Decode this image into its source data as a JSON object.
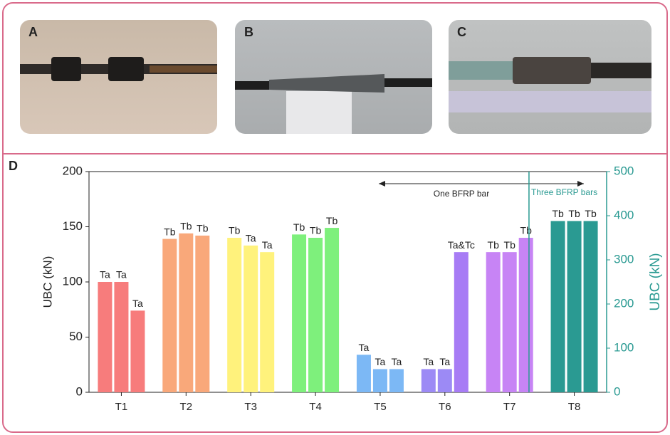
{
  "panels": [
    "A",
    "B",
    "C",
    "D"
  ],
  "chart_data": {
    "type": "bar",
    "ylabel": "UBC (kN)",
    "y2label": "UBC (kN)",
    "ylim": [
      0,
      200
    ],
    "yticks": [
      0,
      50,
      100,
      150,
      200
    ],
    "y2lim": [
      0,
      500
    ],
    "y2ticks": [
      0,
      100,
      200,
      300,
      400,
      500
    ],
    "categories": [
      "T1",
      "T2",
      "T3",
      "T4",
      "T5",
      "T6",
      "T7",
      "T8"
    ],
    "groups": [
      {
        "values": [
          100,
          100,
          74
        ],
        "labels": [
          "Ta",
          "Ta",
          "Ta"
        ],
        "colors": [
          "#f77c7c",
          "#f77c7c",
          "#f77c7c"
        ]
      },
      {
        "values": [
          139,
          144,
          142
        ],
        "labels": [
          "Tb",
          "Tb",
          "Tb"
        ],
        "colors": [
          "#f9a87a",
          "#f9a87a",
          "#f9a87a"
        ]
      },
      {
        "values": [
          140,
          133,
          127
        ],
        "labels": [
          "Tb",
          "Ta",
          "Ta"
        ],
        "colors": [
          "#fff27c",
          "#fff27c",
          "#fff27c"
        ]
      },
      {
        "values": [
          143,
          140,
          149
        ],
        "labels": [
          "Tb",
          "Tb",
          "Tb"
        ],
        "colors": [
          "#7ef07c",
          "#7ef07c",
          "#7ef07c"
        ]
      },
      {
        "values": [
          34,
          21,
          21
        ],
        "labels": [
          "Ta",
          "Ta",
          "Ta"
        ],
        "colors": [
          "#7cb8f5",
          "#7cb8f5",
          "#7cb8f5"
        ]
      },
      {
        "values": [
          21,
          21,
          127
        ],
        "labels": [
          "Ta",
          "Ta",
          "Ta&Tc"
        ],
        "colors": [
          "#9c8af5",
          "#9c8af5",
          "#a77cf5"
        ]
      },
      {
        "values": [
          127,
          127,
          140
        ],
        "labels": [
          "Tb",
          "Tb",
          "Tb"
        ],
        "colors": [
          "#c784f5",
          "#c784f5",
          "#c784f5"
        ]
      },
      {
        "values": [
          388,
          388,
          388
        ],
        "labels": [
          "Tb",
          "Tb",
          "Tb"
        ],
        "colors": [
          "#2a9a92",
          "#2a9a92",
          "#2a9a92"
        ],
        "axis": "y2"
      }
    ],
    "annotations": [
      {
        "text": "One BFRP bar"
      },
      {
        "text": "Three BFRP bars"
      }
    ],
    "y2color": "#2a9a92"
  }
}
